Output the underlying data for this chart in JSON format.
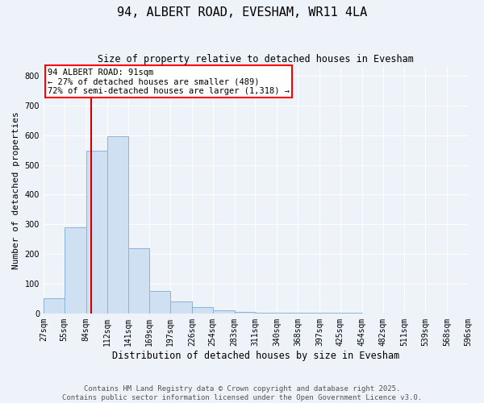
{
  "title": "94, ALBERT ROAD, EVESHAM, WR11 4LA",
  "subtitle": "Size of property relative to detached houses in Evesham",
  "xlabel": "Distribution of detached houses by size in Evesham",
  "ylabel": "Number of detached properties",
  "footer_line1": "Contains HM Land Registry data © Crown copyright and database right 2025.",
  "footer_line2": "Contains public sector information licensed under the Open Government Licence v3.0.",
  "annotation_line1": "94 ALBERT ROAD: 91sqm",
  "annotation_line2": "← 27% of detached houses are smaller (489)",
  "annotation_line3": "72% of semi-detached houses are larger (1,318) →",
  "property_size": 91,
  "bin_edges": [
    27,
    55,
    84,
    112,
    141,
    169,
    197,
    226,
    254,
    283,
    311,
    340,
    368,
    397,
    425,
    454,
    482,
    511,
    539,
    568,
    596
  ],
  "bar_values": [
    50,
    290,
    548,
    598,
    220,
    75,
    40,
    20,
    10,
    5,
    3,
    2,
    1,
    1,
    1,
    0,
    0,
    0,
    0,
    0
  ],
  "bar_color": "#cfe0f3",
  "bar_edge_color": "#8ab4d8",
  "line_color": "#cc0000",
  "ylim": [
    0,
    830
  ],
  "yticks": [
    0,
    100,
    200,
    300,
    400,
    500,
    600,
    700,
    800
  ],
  "background_color": "#eef2f9",
  "grid_color": "#ffffff",
  "title_fontsize": 11,
  "subtitle_fontsize": 8.5,
  "ylabel_fontsize": 8,
  "xlabel_fontsize": 8.5,
  "tick_fontsize": 7,
  "annotation_fontsize": 7.5,
  "footer_fontsize": 6.5
}
